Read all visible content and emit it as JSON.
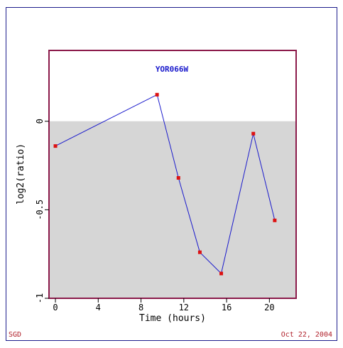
{
  "chart_data": {
    "type": "line",
    "title": "YOR066W",
    "xlabel": "Time (hours)",
    "ylabel": "log2(ratio)",
    "x": [
      0,
      9.5,
      11.5,
      13.5,
      15.5,
      18.5,
      20.5
    ],
    "series": [
      {
        "values": [
          -0.14,
          0.15,
          -0.32,
          -0.74,
          -0.86,
          -0.07,
          -0.56
        ]
      }
    ],
    "xlim": [
      -0.6,
      22.5
    ],
    "ylim": [
      -1,
      0.4
    ],
    "xticks": [
      0,
      4,
      8,
      12,
      16,
      20
    ],
    "yticks": [
      0,
      -0.5,
      -1
    ],
    "ytick_labels": [
      "0",
      "-0.5",
      "-1"
    ],
    "negative_region_shaded": true,
    "grid": false,
    "legend": "none",
    "colors": {
      "line": "#1a1acc",
      "marker": "#dd1111",
      "frame": "#8b1a4a",
      "shade": "#d6d6d6",
      "title": "#1a1acc",
      "outer_border": "#1c1c8c",
      "footer": "#b0202a"
    }
  },
  "footer": {
    "left": "SGD",
    "right": "Oct 22, 2004"
  }
}
